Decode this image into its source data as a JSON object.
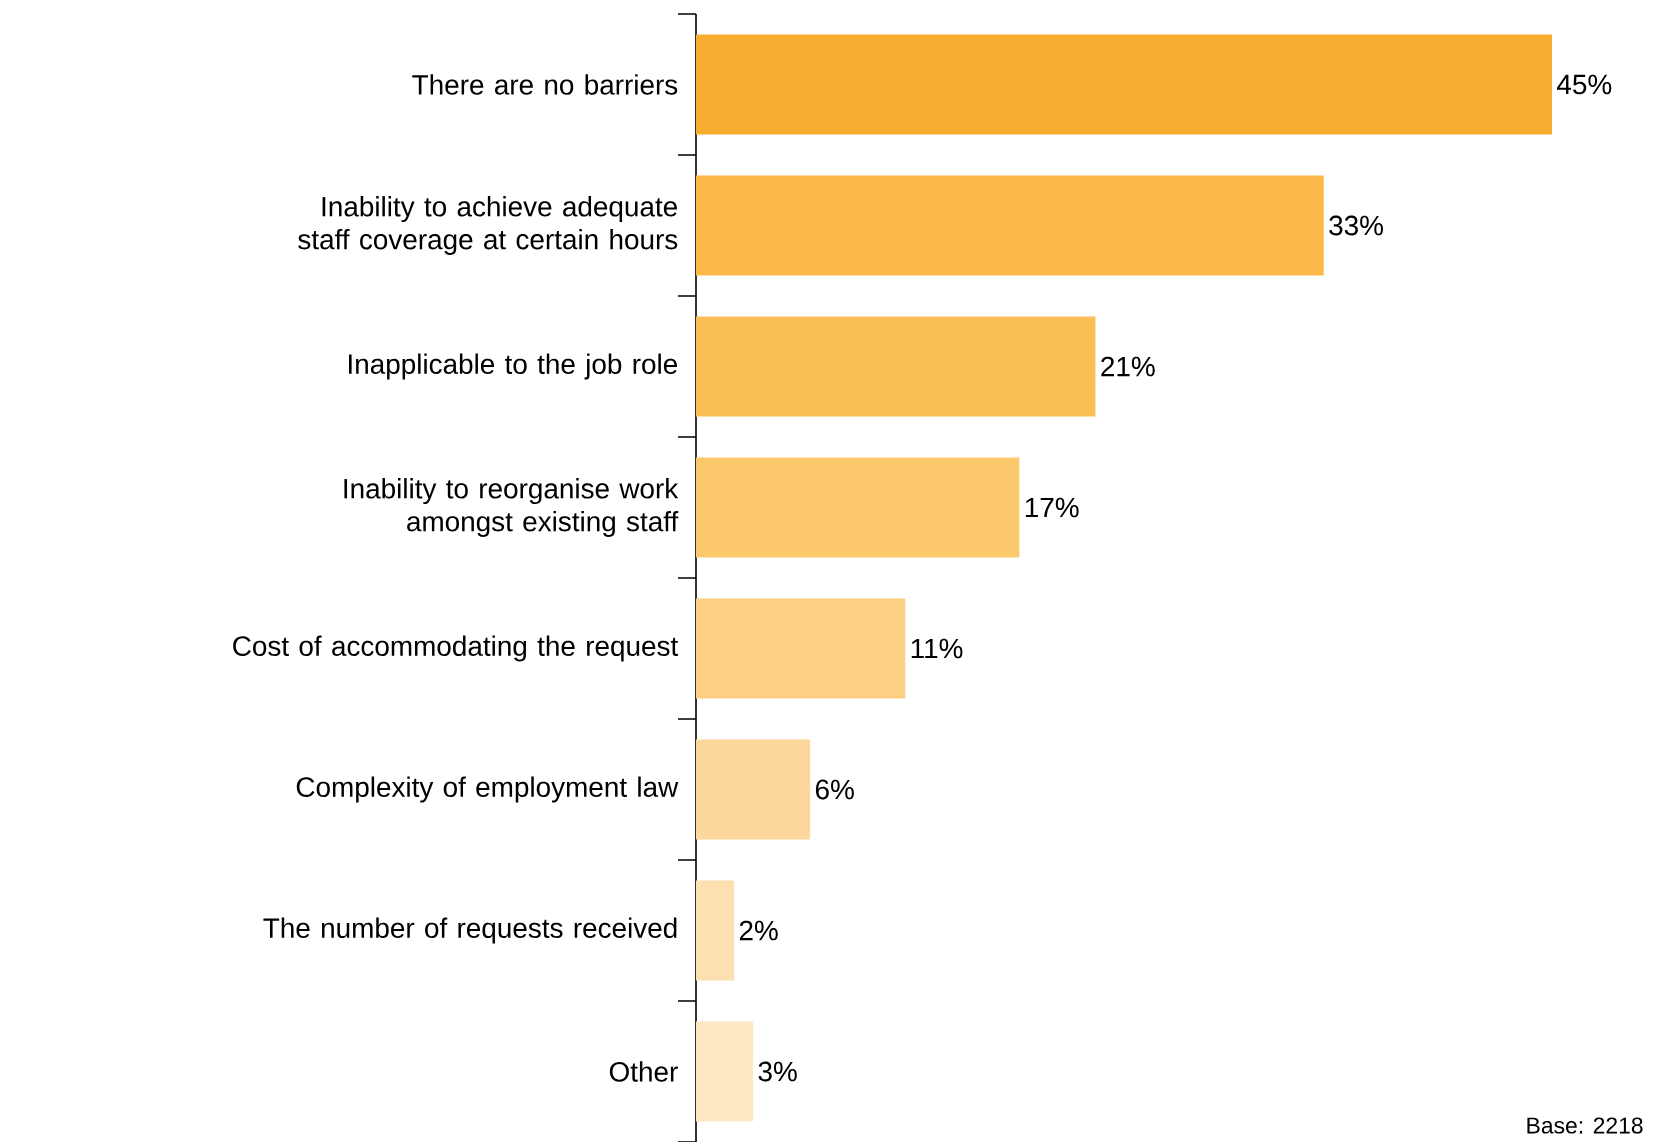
{
  "chart_data": {
    "type": "bar",
    "orientation": "horizontal",
    "categories": [
      "There are no barriers",
      "Inability to achieve adequate staff coverage at certain hours",
      "Inapplicable to the job role",
      "Inability to reorganise work amongst existing staff",
      "Cost of accommodating the request",
      "Complexity of employment law",
      "The number of requests received",
      "Other"
    ],
    "values": [
      45,
      33,
      21,
      17,
      11,
      6,
      2,
      3
    ],
    "value_labels": [
      "45%",
      "33%",
      "21%",
      "17%",
      "11%",
      "6%",
      "2%",
      "3%"
    ],
    "colors": [
      "#f9ad30",
      "#fbb848",
      "#fcbf58",
      "#fcc86c",
      "#fccf84",
      "#fdd89c",
      "#fde0b0",
      "#fee7c3"
    ],
    "annotations": [
      "Base: 2218"
    ]
  }
}
